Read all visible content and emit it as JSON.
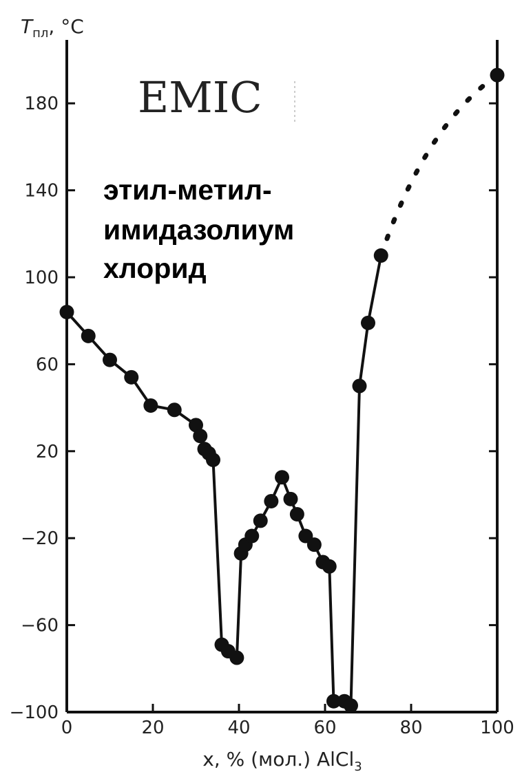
{
  "chart_data": {
    "type": "line",
    "title": "",
    "xlabel": {
      "main": "x, % (мол.) AlCl",
      "sub": "3"
    },
    "ylabel": {
      "main": "T",
      "sub": "пл",
      "unit": ", °C"
    },
    "xlim": [
      0,
      100
    ],
    "ylim": [
      -100,
      200
    ],
    "x_ticks": [
      0,
      20,
      40,
      60,
      80,
      100
    ],
    "y_ticks": [
      -100,
      -60,
      -20,
      20,
      60,
      100,
      140,
      180
    ],
    "x_tick_labels": [
      "0",
      "20",
      "40",
      "60",
      "80",
      "100"
    ],
    "y_tick_labels": [
      "−100",
      "−60",
      "−20",
      "20",
      "60",
      "100",
      "140",
      "180"
    ],
    "grid": false,
    "annotations": {
      "compound": "EMIC",
      "name_lines": [
        "этил-метил-",
        "имидазолиум",
        "хлорид"
      ]
    },
    "series": [
      {
        "points": [
          [
            0,
            84
          ],
          [
            5,
            73
          ],
          [
            10,
            62
          ],
          [
            15,
            54
          ],
          [
            19.5,
            41
          ],
          [
            25,
            39
          ],
          [
            30,
            32
          ],
          [
            31,
            27
          ],
          [
            32,
            21
          ],
          [
            33,
            19
          ],
          [
            34,
            16
          ],
          [
            36,
            -69
          ],
          [
            37.5,
            -72
          ],
          [
            39.5,
            -75
          ],
          [
            40.5,
            -27
          ],
          [
            41.5,
            -23
          ],
          [
            43,
            -19
          ],
          [
            45,
            -12
          ],
          [
            47.5,
            -3
          ],
          [
            50,
            8
          ],
          [
            52,
            -2
          ],
          [
            53.5,
            -9
          ],
          [
            55.5,
            -19
          ],
          [
            57.5,
            -23
          ],
          [
            59.5,
            -31
          ],
          [
            61,
            -33
          ],
          [
            62,
            -95
          ],
          [
            64.5,
            -95
          ],
          [
            66,
            -97
          ],
          [
            68,
            50
          ],
          [
            70,
            79
          ],
          [
            73,
            110
          ]
        ],
        "dashed_extension": [
          [
            73,
            110
          ],
          [
            100,
            193
          ]
        ],
        "end_point": [
          100,
          193
        ]
      }
    ]
  }
}
